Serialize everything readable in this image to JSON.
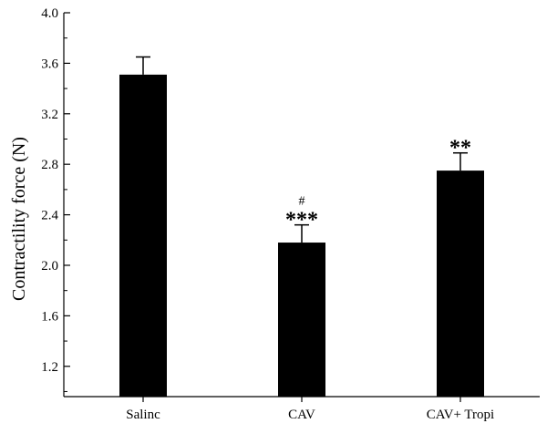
{
  "chart_data": {
    "type": "bar",
    "title": "",
    "xlabel": "",
    "ylabel": "Contractility  force (N)",
    "categories": [
      "Salinc",
      "CAV",
      "CAV+  Tropi"
    ],
    "values": [
      3.51,
      2.18,
      2.75
    ],
    "errors": [
      0.14,
      0.14,
      0.14
    ],
    "annotations": [
      {
        "category": "Salinc",
        "lines": []
      },
      {
        "category": "CAV",
        "lines": [
          "#",
          "***"
        ]
      },
      {
        "category": "CAV+  Tropi",
        "lines": [
          "**"
        ]
      }
    ],
    "ylim": [
      0.96,
      4.0
    ],
    "yticks": [
      1.2,
      1.6,
      2.0,
      2.4,
      2.8,
      3.2,
      3.6,
      4.0
    ],
    "ytick_labels": [
      "1.2",
      "1.6",
      "2.0",
      "2.4",
      "2.8",
      "3.2",
      "3.6",
      "4.0"
    ],
    "grid": false,
    "bar_color": "#000000",
    "legend": "none"
  }
}
